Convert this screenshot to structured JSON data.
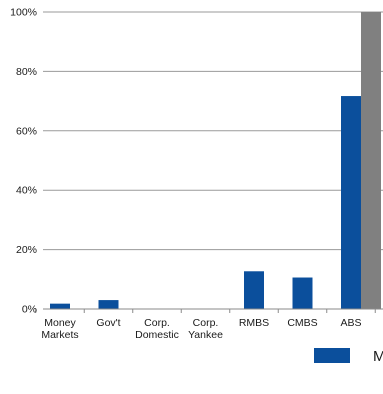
{
  "chart_data": {
    "type": "bar",
    "categories": [
      [
        "Money",
        "Markets"
      ],
      [
        "Gov't"
      ],
      [
        "Corp.",
        "Domestic"
      ],
      [
        "Corp.",
        "Yankee"
      ],
      [
        "RMBS"
      ],
      [
        "CMBS"
      ],
      [
        "ABS"
      ]
    ],
    "series": [
      {
        "color": "#0b4f9c",
        "values": [
          1.8,
          3.0,
          0,
          0,
          12.7,
          10.6,
          71.7
        ]
      },
      {
        "color": "#808080",
        "values": [
          0,
          0,
          0,
          0,
          0,
          0,
          100
        ]
      }
    ],
    "y_ticks": [
      "0%",
      "20%",
      "40%",
      "60%",
      "80%",
      "100%"
    ],
    "ylim": [
      0,
      100
    ],
    "grid": true,
    "legend": {
      "placement": "bottom-right",
      "entries": [
        {
          "label": "M",
          "color": "#0b4f9c"
        }
      ]
    }
  }
}
